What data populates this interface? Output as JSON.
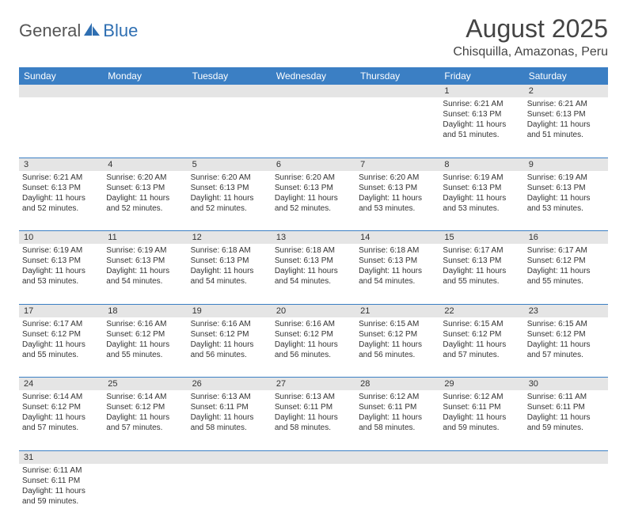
{
  "logo": {
    "general": "General",
    "blue": "Blue"
  },
  "title": "August 2025",
  "location": "Chisquilla, Amazonas, Peru",
  "colors": {
    "header_bg": "#3b7fc4",
    "daynum_bg": "#e5e5e5",
    "row_border": "#3b7fc4",
    "logo_blue": "#2f6fb2"
  },
  "weekdays": [
    "Sunday",
    "Monday",
    "Tuesday",
    "Wednesday",
    "Thursday",
    "Friday",
    "Saturday"
  ],
  "weeks": [
    [
      null,
      null,
      null,
      null,
      null,
      {
        "n": "1",
        "sr": "Sunrise: 6:21 AM",
        "ss": "Sunset: 6:13 PM",
        "dl1": "Daylight: 11 hours",
        "dl2": "and 51 minutes."
      },
      {
        "n": "2",
        "sr": "Sunrise: 6:21 AM",
        "ss": "Sunset: 6:13 PM",
        "dl1": "Daylight: 11 hours",
        "dl2": "and 51 minutes."
      }
    ],
    [
      {
        "n": "3",
        "sr": "Sunrise: 6:21 AM",
        "ss": "Sunset: 6:13 PM",
        "dl1": "Daylight: 11 hours",
        "dl2": "and 52 minutes."
      },
      {
        "n": "4",
        "sr": "Sunrise: 6:20 AM",
        "ss": "Sunset: 6:13 PM",
        "dl1": "Daylight: 11 hours",
        "dl2": "and 52 minutes."
      },
      {
        "n": "5",
        "sr": "Sunrise: 6:20 AM",
        "ss": "Sunset: 6:13 PM",
        "dl1": "Daylight: 11 hours",
        "dl2": "and 52 minutes."
      },
      {
        "n": "6",
        "sr": "Sunrise: 6:20 AM",
        "ss": "Sunset: 6:13 PM",
        "dl1": "Daylight: 11 hours",
        "dl2": "and 52 minutes."
      },
      {
        "n": "7",
        "sr": "Sunrise: 6:20 AM",
        "ss": "Sunset: 6:13 PM",
        "dl1": "Daylight: 11 hours",
        "dl2": "and 53 minutes."
      },
      {
        "n": "8",
        "sr": "Sunrise: 6:19 AM",
        "ss": "Sunset: 6:13 PM",
        "dl1": "Daylight: 11 hours",
        "dl2": "and 53 minutes."
      },
      {
        "n": "9",
        "sr": "Sunrise: 6:19 AM",
        "ss": "Sunset: 6:13 PM",
        "dl1": "Daylight: 11 hours",
        "dl2": "and 53 minutes."
      }
    ],
    [
      {
        "n": "10",
        "sr": "Sunrise: 6:19 AM",
        "ss": "Sunset: 6:13 PM",
        "dl1": "Daylight: 11 hours",
        "dl2": "and 53 minutes."
      },
      {
        "n": "11",
        "sr": "Sunrise: 6:19 AM",
        "ss": "Sunset: 6:13 PM",
        "dl1": "Daylight: 11 hours",
        "dl2": "and 54 minutes."
      },
      {
        "n": "12",
        "sr": "Sunrise: 6:18 AM",
        "ss": "Sunset: 6:13 PM",
        "dl1": "Daylight: 11 hours",
        "dl2": "and 54 minutes."
      },
      {
        "n": "13",
        "sr": "Sunrise: 6:18 AM",
        "ss": "Sunset: 6:13 PM",
        "dl1": "Daylight: 11 hours",
        "dl2": "and 54 minutes."
      },
      {
        "n": "14",
        "sr": "Sunrise: 6:18 AM",
        "ss": "Sunset: 6:13 PM",
        "dl1": "Daylight: 11 hours",
        "dl2": "and 54 minutes."
      },
      {
        "n": "15",
        "sr": "Sunrise: 6:17 AM",
        "ss": "Sunset: 6:13 PM",
        "dl1": "Daylight: 11 hours",
        "dl2": "and 55 minutes."
      },
      {
        "n": "16",
        "sr": "Sunrise: 6:17 AM",
        "ss": "Sunset: 6:12 PM",
        "dl1": "Daylight: 11 hours",
        "dl2": "and 55 minutes."
      }
    ],
    [
      {
        "n": "17",
        "sr": "Sunrise: 6:17 AM",
        "ss": "Sunset: 6:12 PM",
        "dl1": "Daylight: 11 hours",
        "dl2": "and 55 minutes."
      },
      {
        "n": "18",
        "sr": "Sunrise: 6:16 AM",
        "ss": "Sunset: 6:12 PM",
        "dl1": "Daylight: 11 hours",
        "dl2": "and 55 minutes."
      },
      {
        "n": "19",
        "sr": "Sunrise: 6:16 AM",
        "ss": "Sunset: 6:12 PM",
        "dl1": "Daylight: 11 hours",
        "dl2": "and 56 minutes."
      },
      {
        "n": "20",
        "sr": "Sunrise: 6:16 AM",
        "ss": "Sunset: 6:12 PM",
        "dl1": "Daylight: 11 hours",
        "dl2": "and 56 minutes."
      },
      {
        "n": "21",
        "sr": "Sunrise: 6:15 AM",
        "ss": "Sunset: 6:12 PM",
        "dl1": "Daylight: 11 hours",
        "dl2": "and 56 minutes."
      },
      {
        "n": "22",
        "sr": "Sunrise: 6:15 AM",
        "ss": "Sunset: 6:12 PM",
        "dl1": "Daylight: 11 hours",
        "dl2": "and 57 minutes."
      },
      {
        "n": "23",
        "sr": "Sunrise: 6:15 AM",
        "ss": "Sunset: 6:12 PM",
        "dl1": "Daylight: 11 hours",
        "dl2": "and 57 minutes."
      }
    ],
    [
      {
        "n": "24",
        "sr": "Sunrise: 6:14 AM",
        "ss": "Sunset: 6:12 PM",
        "dl1": "Daylight: 11 hours",
        "dl2": "and 57 minutes."
      },
      {
        "n": "25",
        "sr": "Sunrise: 6:14 AM",
        "ss": "Sunset: 6:12 PM",
        "dl1": "Daylight: 11 hours",
        "dl2": "and 57 minutes."
      },
      {
        "n": "26",
        "sr": "Sunrise: 6:13 AM",
        "ss": "Sunset: 6:11 PM",
        "dl1": "Daylight: 11 hours",
        "dl2": "and 58 minutes."
      },
      {
        "n": "27",
        "sr": "Sunrise: 6:13 AM",
        "ss": "Sunset: 6:11 PM",
        "dl1": "Daylight: 11 hours",
        "dl2": "and 58 minutes."
      },
      {
        "n": "28",
        "sr": "Sunrise: 6:12 AM",
        "ss": "Sunset: 6:11 PM",
        "dl1": "Daylight: 11 hours",
        "dl2": "and 58 minutes."
      },
      {
        "n": "29",
        "sr": "Sunrise: 6:12 AM",
        "ss": "Sunset: 6:11 PM",
        "dl1": "Daylight: 11 hours",
        "dl2": "and 59 minutes."
      },
      {
        "n": "30",
        "sr": "Sunrise: 6:11 AM",
        "ss": "Sunset: 6:11 PM",
        "dl1": "Daylight: 11 hours",
        "dl2": "and 59 minutes."
      }
    ],
    [
      {
        "n": "31",
        "sr": "Sunrise: 6:11 AM",
        "ss": "Sunset: 6:11 PM",
        "dl1": "Daylight: 11 hours",
        "dl2": "and 59 minutes."
      },
      null,
      null,
      null,
      null,
      null,
      null
    ]
  ]
}
